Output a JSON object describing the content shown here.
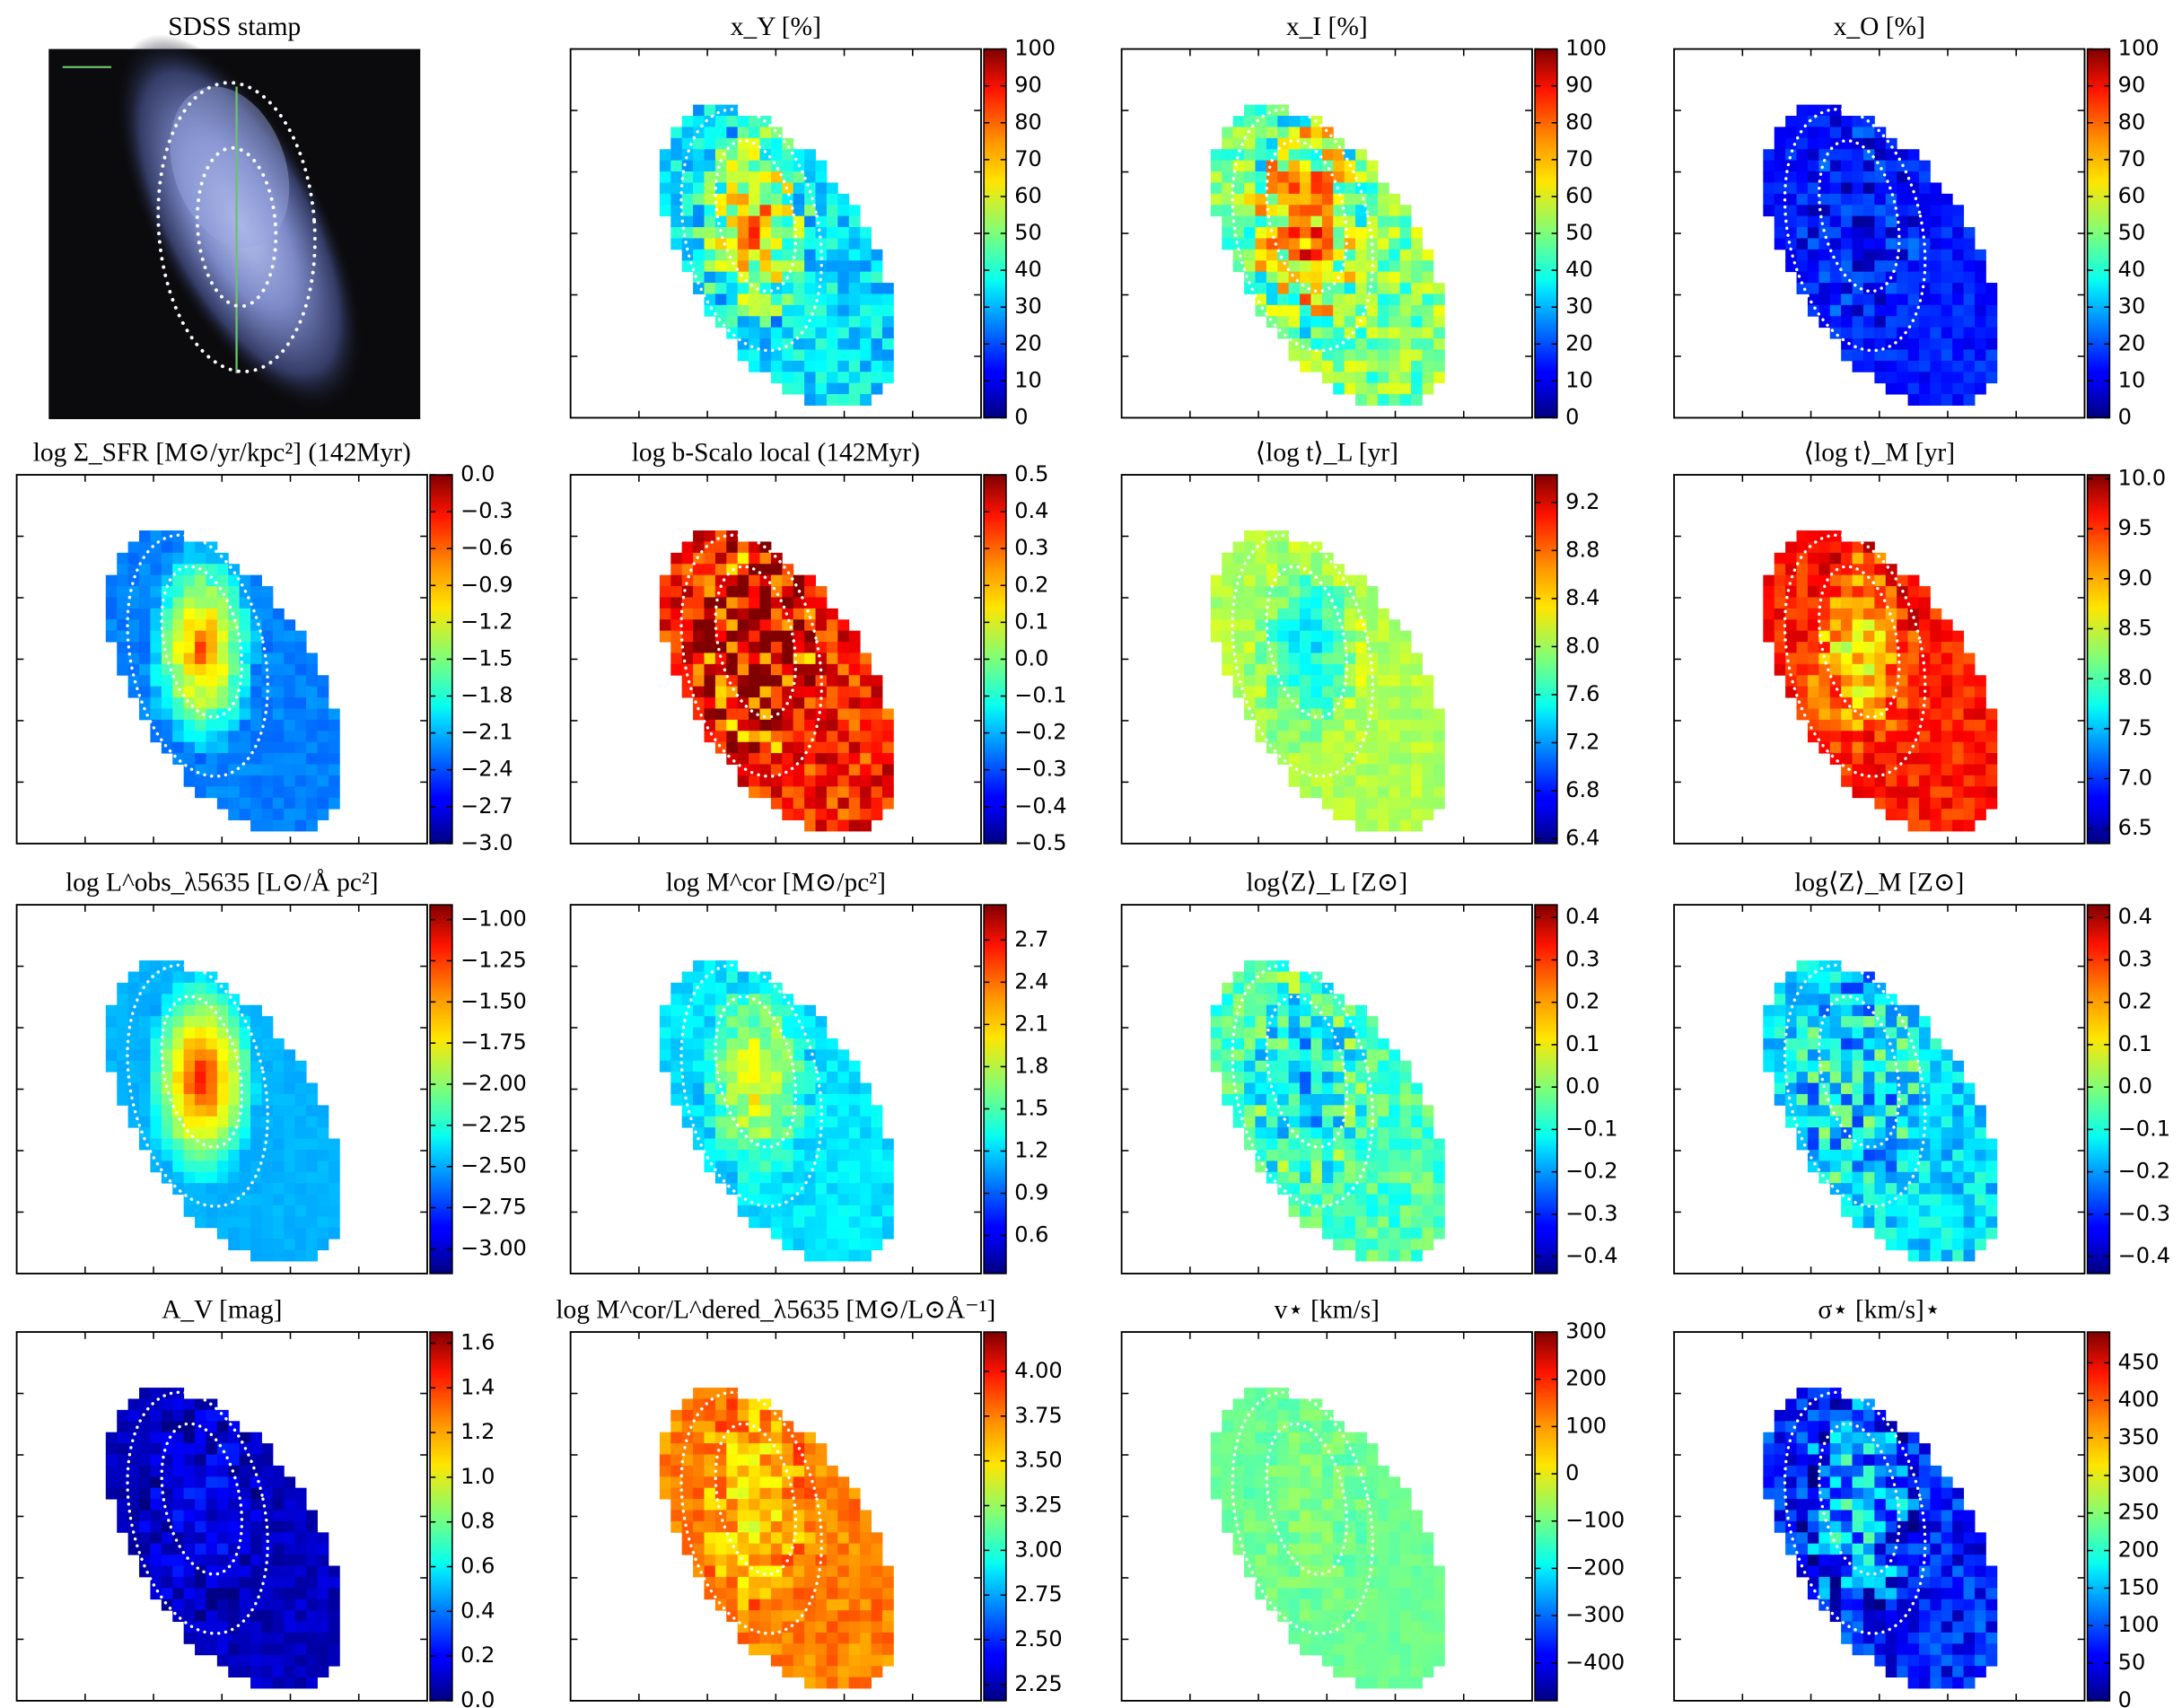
{
  "panels": [
    {
      "title": "SDSS stamp"
    },
    {
      "title": "x_Y [%]",
      "colorbar": {
        "lim": [
          0,
          100
        ],
        "ticks": [
          0,
          10,
          20,
          30,
          40,
          50,
          60,
          70,
          80,
          90,
          100
        ]
      }
    },
    {
      "title": "x_I [%]",
      "colorbar": {
        "lim": [
          0,
          100
        ],
        "ticks": [
          0,
          10,
          20,
          30,
          40,
          50,
          60,
          70,
          80,
          90,
          100
        ]
      }
    },
    {
      "title": "x_O [%]",
      "colorbar": {
        "lim": [
          0,
          100
        ],
        "ticks": [
          0,
          10,
          20,
          30,
          40,
          50,
          60,
          70,
          80,
          90,
          100
        ]
      }
    },
    {
      "title": "log Σ_SFR [M⊙/yr/kpc²] (142Myr)",
      "colorbar": {
        "lim": [
          -3,
          0
        ],
        "ticks": [
          {
            "value": 0,
            "label": "0.0"
          },
          {
            "value": -0.3,
            "label": "−0.3"
          },
          {
            "value": -0.6,
            "label": "−0.6"
          },
          {
            "value": -0.9,
            "label": "−0.9"
          },
          {
            "value": -1.2,
            "label": "−1.2"
          },
          {
            "value": -1.5,
            "label": "−1.5"
          },
          {
            "value": -1.8,
            "label": "−1.8"
          },
          {
            "value": -2.1,
            "label": "−2.1"
          },
          {
            "value": -2.4,
            "label": "−2.4"
          },
          {
            "value": -2.7,
            "label": "−2.7"
          },
          {
            "value": -3,
            "label": "−3.0"
          }
        ]
      }
    },
    {
      "title": "log b-Scalo local (142Myr)",
      "colorbar": {
        "lim": [
          -0.5,
          0.5
        ],
        "ticks": [
          0.5,
          0.4,
          0.3,
          0.2,
          0.1,
          {
            "value": 0,
            "label": "0.0"
          },
          {
            "value": -0.1,
            "label": "−0.1"
          },
          {
            "value": -0.2,
            "label": "−0.2"
          },
          {
            "value": -0.3,
            "label": "−0.3"
          },
          {
            "value": -0.4,
            "label": "−0.4"
          },
          {
            "value": -0.5,
            "label": "−0.5"
          }
        ]
      }
    },
    {
      "title": "⟨log t⟩_L [yr]",
      "colorbar": {
        "lim": [
          6.36,
          9.43
        ],
        "ticks": [
          9.2,
          8.8,
          8.4,
          {
            "value": 8,
            "label": "8.0"
          },
          7.6,
          7.2,
          6.8,
          6.4
        ]
      }
    },
    {
      "title": "⟨log t⟩_M [yr]",
      "colorbar": {
        "lim": [
          6.35,
          10.04
        ],
        "ticks": [
          {
            "value": 10,
            "label": "10.0"
          },
          9.5,
          {
            "value": 9,
            "label": "9.0"
          },
          8.5,
          {
            "value": 8,
            "label": "8.0"
          },
          7.5,
          {
            "value": 7,
            "label": "7.0"
          },
          6.5
        ]
      }
    },
    {
      "title": "log L^obs_λ5635 [L⊙/Å pc²]",
      "colorbar": {
        "lim": [
          -3.15,
          -0.91
        ],
        "ticks": [
          {
            "value": -1,
            "label": "−1.00"
          },
          {
            "value": -1.25,
            "label": "−1.25"
          },
          {
            "value": -1.5,
            "label": "−1.50"
          },
          {
            "value": -1.75,
            "label": "−1.75"
          },
          {
            "value": -2,
            "label": "−2.00"
          },
          {
            "value": -2.25,
            "label": "−2.25"
          },
          {
            "value": -2.5,
            "label": "−2.50"
          },
          {
            "value": -2.75,
            "label": "−2.75"
          },
          {
            "value": -3,
            "label": "−3.00"
          }
        ]
      }
    },
    {
      "title": "log M^cor [M⊙/pc²]",
      "colorbar": {
        "lim": [
          0.33,
          2.95
        ],
        "ticks": [
          2.7,
          2.4,
          2.1,
          1.8,
          1.5,
          1.2,
          0.9,
          0.6
        ]
      }
    },
    {
      "title": "log⟨Z⟩_L [Z⊙]",
      "colorbar": {
        "lim": [
          -0.44,
          0.43
        ],
        "ticks": [
          0.4,
          0.3,
          0.2,
          0.1,
          {
            "value": 0,
            "label": "0.0"
          },
          {
            "value": -0.1,
            "label": "−0.1"
          },
          {
            "value": -0.2,
            "label": "−0.2"
          },
          {
            "value": -0.3,
            "label": "−0.3"
          },
          {
            "value": -0.4,
            "label": "−0.4"
          }
        ]
      }
    },
    {
      "title": "log⟨Z⟩_M [Z⊙]",
      "colorbar": {
        "lim": [
          -0.44,
          0.43
        ],
        "ticks": [
          0.4,
          0.3,
          0.2,
          0.1,
          {
            "value": 0,
            "label": "0.0"
          },
          {
            "value": -0.1,
            "label": "−0.1"
          },
          {
            "value": -0.2,
            "label": "−0.2"
          },
          {
            "value": -0.3,
            "label": "−0.3"
          },
          {
            "value": -0.4,
            "label": "−0.4"
          }
        ]
      }
    },
    {
      "title": "A_V [mag]",
      "colorbar": {
        "lim": [
          0,
          1.65
        ],
        "ticks": [
          1.6,
          1.4,
          1.2,
          {
            "value": 1,
            "label": "1.0"
          },
          0.8,
          0.6,
          0.4,
          0.2,
          {
            "value": 0,
            "label": "0.0"
          }
        ]
      }
    },
    {
      "title": "log M^cor/L^dered_λ5635 [M⊙/L⊙Å⁻¹]",
      "colorbar": {
        "lim": [
          2.16,
          4.22
        ],
        "ticks": [
          {
            "value": 4,
            "label": "4.00"
          },
          3.75,
          {
            "value": 3.5,
            "label": "3.50"
          },
          3.25,
          {
            "value": 3,
            "label": "3.00"
          },
          2.75,
          {
            "value": 2.5,
            "label": "2.50"
          },
          2.25
        ]
      }
    },
    {
      "title": "v⋆ [km/s]",
      "colorbar": {
        "lim": [
          -480,
          300
        ],
        "ticks": [
          300,
          200,
          100,
          0,
          {
            "value": -100,
            "label": "−100"
          },
          {
            "value": -200,
            "label": "−200"
          },
          {
            "value": -300,
            "label": "−300"
          },
          {
            "value": -400,
            "label": "−400"
          }
        ]
      }
    },
    {
      "title": "σ⋆ [km/s]⋆",
      "colorbar": {
        "lim": [
          0,
          491
        ],
        "ticks": [
          450,
          400,
          350,
          300,
          250,
          200,
          150,
          100,
          50,
          0
        ]
      }
    }
  ]
}
